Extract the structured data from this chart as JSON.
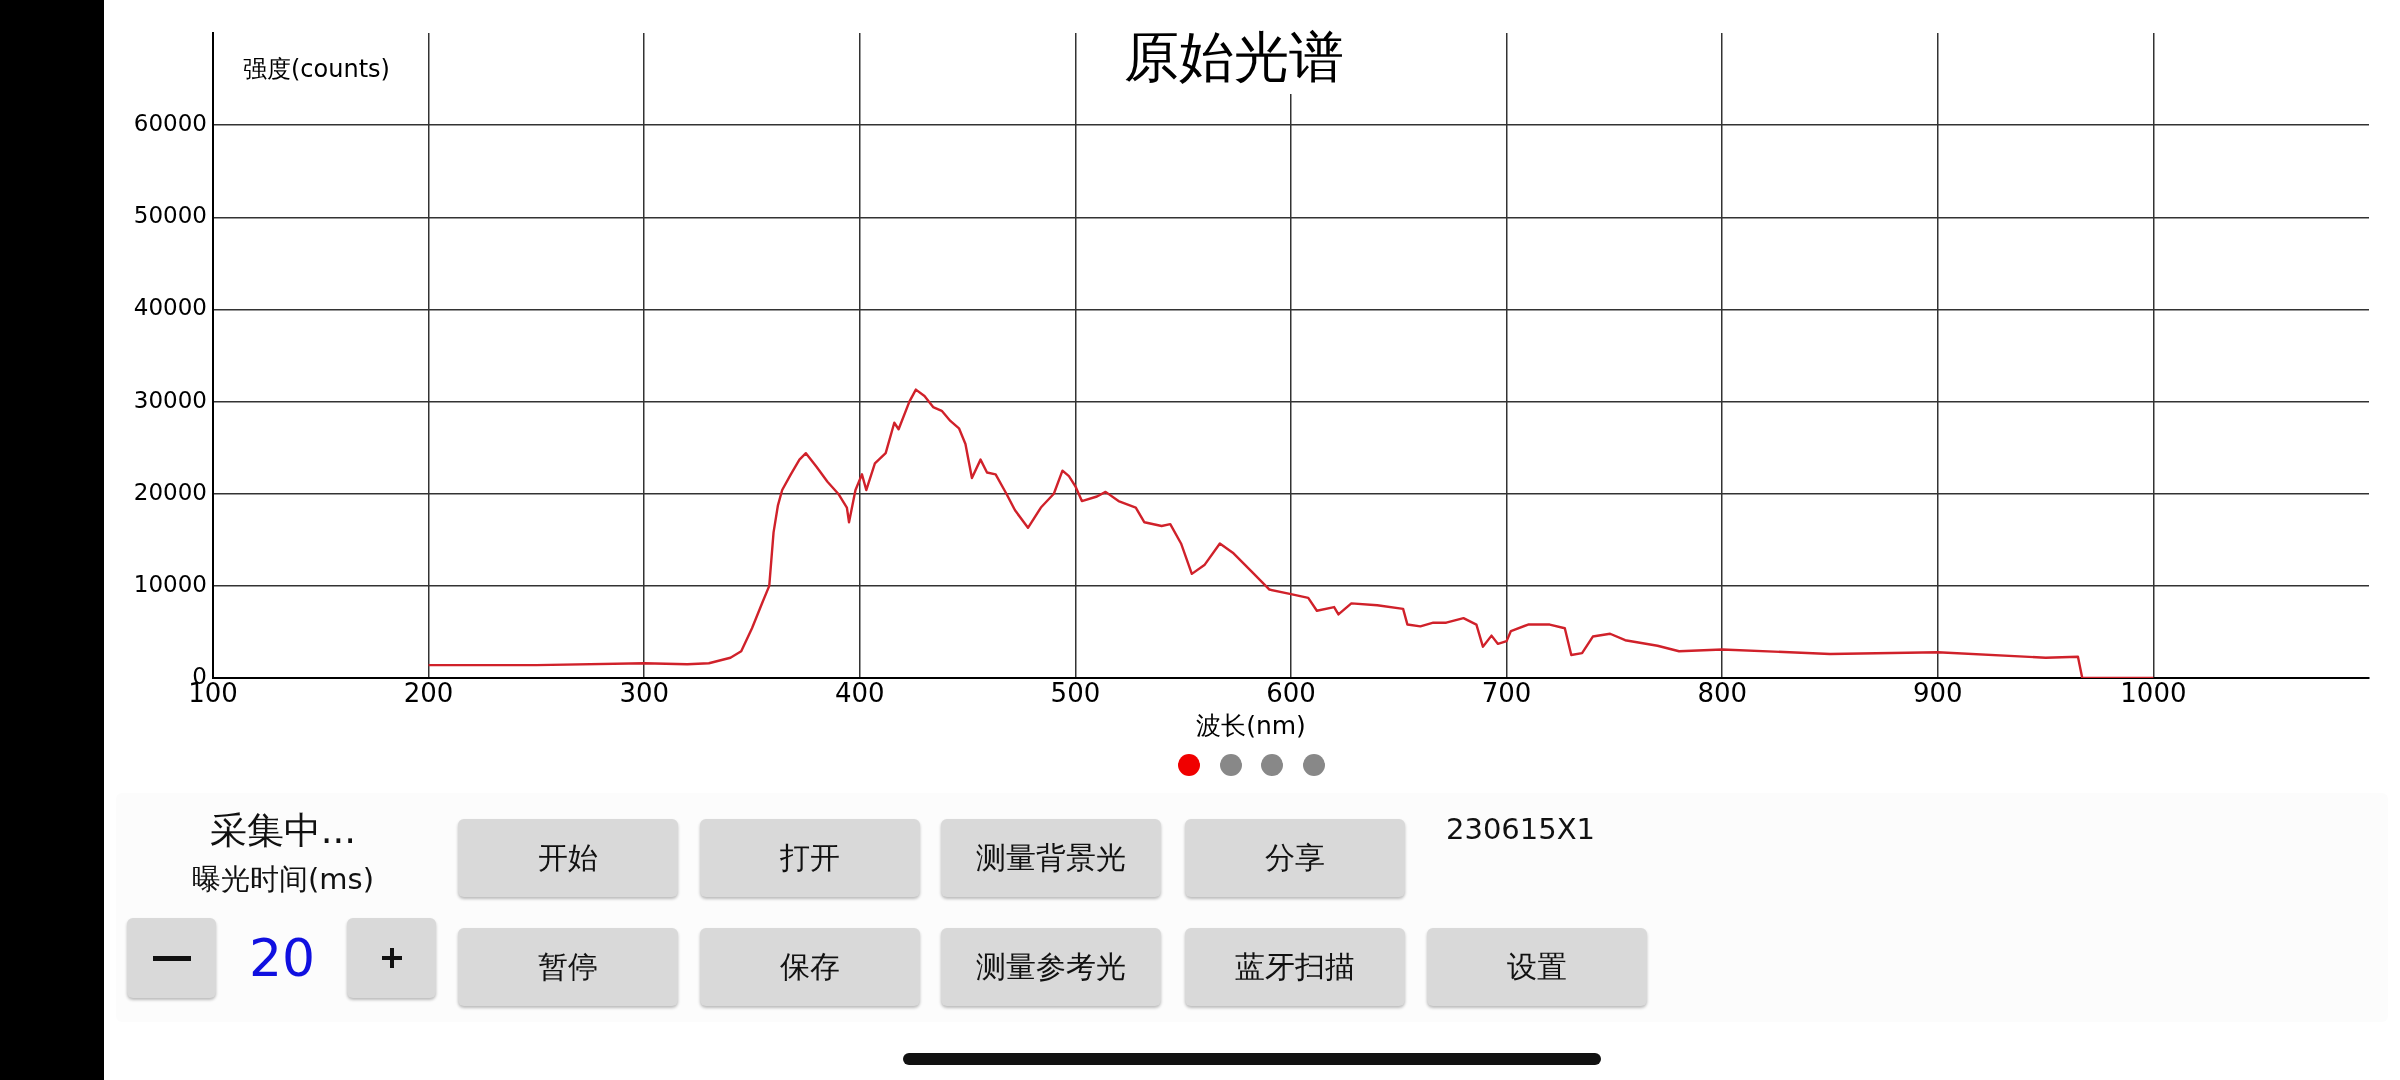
{
  "chart_data": {
    "type": "line",
    "title": "原始光谱",
    "xlabel": "波长(nm)",
    "ylabel": "强度(counts)",
    "xlim": [
      100,
      1100
    ],
    "xticks": [
      100,
      200,
      300,
      400,
      500,
      600,
      700,
      800,
      900,
      1000
    ],
    "ylim": [
      0,
      70000
    ],
    "yticks": [
      0,
      10000,
      20000,
      30000,
      40000,
      50000,
      60000
    ],
    "grid": true,
    "legend": false,
    "marker": "none",
    "line_style": "solid",
    "series": [
      {
        "color": "#d0212a",
        "x": [
          200,
          250,
          300,
          320,
          330,
          340,
          345,
          350,
          355,
          358,
          360,
          362,
          364,
          368,
          372,
          375,
          380,
          385,
          390,
          394,
          395,
          398,
          401,
          403,
          407,
          412,
          416,
          418,
          423,
          426,
          430,
          434,
          438,
          442,
          446,
          449,
          452,
          456,
          459,
          463,
          468,
          472,
          478,
          484,
          490,
          494,
          497,
          500,
          503,
          510,
          514,
          520,
          528,
          532,
          540,
          544,
          549,
          554,
          560,
          567,
          573,
          582,
          590,
          600,
          608,
          612,
          620,
          622,
          628,
          640,
          652,
          654,
          660,
          666,
          672,
          680,
          686,
          689,
          693,
          696,
          700,
          702,
          710,
          720,
          727,
          730,
          735,
          740,
          748,
          755,
          770,
          780,
          800,
          850,
          900,
          950,
          965,
          967,
          1000
        ],
        "values": [
          1400,
          1400,
          1600,
          1500,
          1600,
          2200,
          2900,
          5400,
          8300,
          10000,
          15800,
          18700,
          20400,
          22100,
          23700,
          24400,
          22900,
          21300,
          20000,
          18500,
          16900,
          20400,
          22100,
          20400,
          23300,
          24400,
          27700,
          27000,
          30000,
          31300,
          30600,
          29400,
          29000,
          27900,
          27100,
          25400,
          21700,
          23700,
          22300,
          22100,
          20000,
          18200,
          16300,
          18500,
          20000,
          22500,
          21900,
          20800,
          19200,
          19700,
          20200,
          19200,
          18500,
          16900,
          16500,
          16700,
          14600,
          11300,
          12300,
          14600,
          13600,
          11500,
          9600,
          9100,
          8700,
          7300,
          7700,
          6900,
          8100,
          7900,
          7500,
          5800,
          5600,
          6000,
          6000,
          6500,
          5800,
          3400,
          4600,
          3700,
          4000,
          5100,
          5800,
          5800,
          5400,
          2500,
          2700,
          4500,
          4800,
          4100,
          3500,
          2900,
          3100,
          2600,
          2800,
          2200,
          2300,
          0,
          0
        ]
      }
    ],
    "annotations": [
      "采集中...",
      "曝光时间(ms)",
      "20",
      "开始",
      "打开",
      "测量背景光",
      "分享",
      "230615X1",
      "暂停",
      "保存",
      "测量参考光",
      "蓝牙扫描",
      "设置"
    ]
  }
}
